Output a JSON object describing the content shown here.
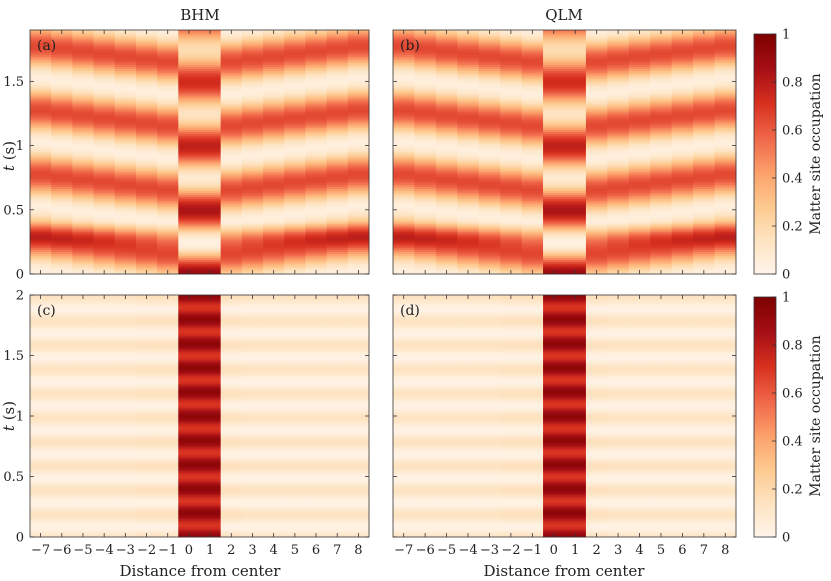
{
  "chart_data": {
    "type": "heatmap",
    "column_titles": [
      "BHM",
      "QLM"
    ],
    "xlabel": "Distance from center",
    "ylabel_var": "t",
    "ylabel_unit": " (s)",
    "colorbar_label": "Matter site occupation",
    "colorbar_ticks": [
      "0",
      "0.2",
      "0.4",
      "0.6",
      "0.8",
      "1"
    ],
    "x_ticks": [
      "−7",
      "−6",
      "−5",
      "−4",
      "−3",
      "−2",
      "−1",
      "0",
      "1",
      "2",
      "3",
      "4",
      "5",
      "6",
      "7",
      "8"
    ],
    "x_positions": [
      -7,
      -6,
      -5,
      -4,
      -3,
      -2,
      -1,
      0,
      1,
      2,
      3,
      4,
      5,
      6,
      7,
      8
    ],
    "clim": [
      0,
      1
    ],
    "colormap": [
      "#fff5eb",
      "#fee3c1",
      "#fdc98e",
      "#fc9f6a",
      "#ef6548",
      "#d7301f",
      "#a50f15",
      "#7f0000"
    ],
    "panels": [
      {
        "label": "(a)",
        "model": "BHM",
        "ylim": [
          0,
          1.9
        ],
        "y_ticks": [
          "0",
          "0.5",
          "1",
          "1.5"
        ],
        "y_tick_values": [
          0,
          0.5,
          1,
          1.5
        ],
        "center_sites": [
          0,
          1
        ],
        "center_pattern": "transport",
        "occupation_amplitude": 0.3,
        "period_s": 0.5
      },
      {
        "label": "(b)",
        "model": "QLM",
        "ylim": [
          0,
          1.9
        ],
        "y_ticks": [
          "0",
          "0.5",
          "1",
          "1.5"
        ],
        "y_tick_values": [
          0,
          0.5,
          1,
          1.5
        ],
        "center_sites": [
          0,
          1
        ],
        "center_pattern": "transport",
        "occupation_amplitude": 0.3,
        "period_s": 0.5
      },
      {
        "label": "(c)",
        "model": "BHM",
        "ylim": [
          0,
          2
        ],
        "y_ticks": [
          "0",
          "0.5",
          "1",
          "1.5",
          "2"
        ],
        "y_tick_values": [
          0,
          0.5,
          1,
          1.5,
          2
        ],
        "center_sites": [
          0,
          1
        ],
        "center_pattern": "localized",
        "occupation_amplitude": 0.05,
        "period_s": 0.2
      },
      {
        "label": "(d)",
        "model": "QLM",
        "ylim": [
          0,
          2
        ],
        "y_ticks": [
          "0",
          "0.5",
          "1",
          "1.5",
          "2"
        ],
        "y_tick_values": [
          0,
          0.5,
          1,
          1.5,
          2
        ],
        "center_sites": [
          0,
          1
        ],
        "center_pattern": "localized",
        "occupation_amplitude": 0.05,
        "period_s": 0.2
      }
    ]
  }
}
